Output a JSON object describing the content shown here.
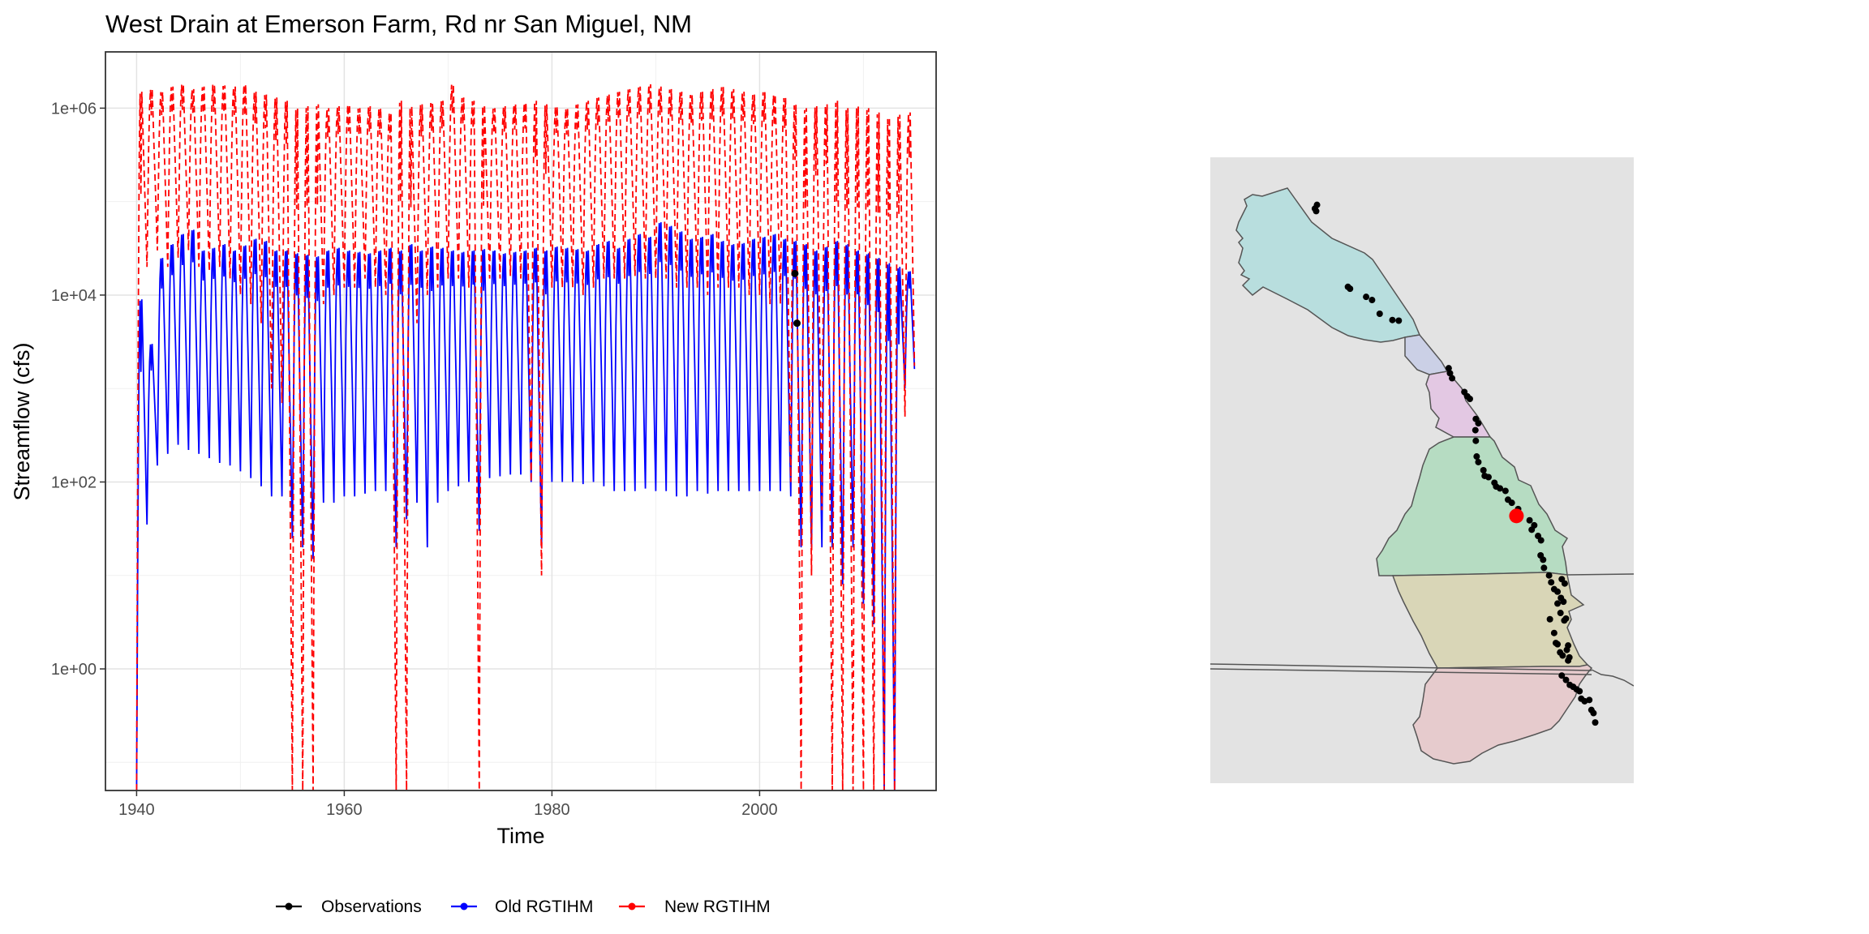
{
  "chart_data": {
    "type": "line",
    "title": "West Drain at Emerson Farm, Rd nr San Miguel, NM",
    "xlabel": "Time",
    "ylabel": "Streamflow (cfs)",
    "y_scale": "log10",
    "xlim": [
      1937,
      2017
    ],
    "ylim": [
      0.05,
      4000000
    ],
    "x_ticks": [
      1940,
      1960,
      1980,
      2000
    ],
    "x_tick_labels": [
      "1940",
      "1960",
      "1980",
      "2000"
    ],
    "y_ticks": [
      1,
      100,
      10000,
      1000000
    ],
    "y_tick_labels": [
      "1e+00",
      "1e+02",
      "1e+04",
      "1e+06"
    ],
    "grid": true,
    "legend_position": "bottom",
    "series": [
      {
        "name": "Observations",
        "color": "#000000",
        "style": "points",
        "points": [
          [
            2003.4,
            17000
          ],
          [
            2003.6,
            5000
          ]
        ]
      },
      {
        "name": "Old RGTIHM",
        "color": "#0000ff",
        "style": "solid",
        "start_year": 1940,
        "end_year": 2015,
        "annual_peak": [
          9000,
          3000,
          25000,
          35000,
          45000,
          50000,
          30000,
          32000,
          35000,
          30000,
          34000,
          40000,
          38000,
          30000,
          30000,
          28000,
          27000,
          26000,
          30000,
          32000,
          30000,
          29000,
          28000,
          30000,
          32000,
          30000,
          35000,
          30000,
          33000,
          32000,
          30000,
          29000,
          30000,
          31000,
          30000,
          28000,
          29000,
          30000,
          32000,
          30000,
          33000,
          32000,
          31000,
          30000,
          35000,
          38000,
          32000,
          40000,
          45000,
          42000,
          60000,
          55000,
          48000,
          40000,
          42000,
          45000,
          38000,
          35000,
          36000,
          40000,
          42000,
          45000,
          40000,
          38000,
          35000,
          30000,
          33000,
          38000,
          35000,
          30000,
          28000,
          25000,
          22000,
          20000,
          18000
        ],
        "annual_low": [
          0.05,
          35,
          150,
          200,
          250,
          220,
          200,
          180,
          160,
          150,
          130,
          110,
          90,
          70,
          70,
          25,
          20,
          15,
          60,
          60,
          70,
          70,
          75,
          80,
          80,
          20,
          40,
          60,
          20,
          60,
          80,
          90,
          100,
          30,
          110,
          115,
          120,
          120,
          100,
          20,
          100,
          100,
          100,
          95,
          100,
          90,
          80,
          80,
          80,
          85,
          80,
          80,
          70,
          70,
          80,
          75,
          80,
          80,
          80,
          80,
          80,
          80,
          80,
          70,
          20,
          20,
          20,
          20,
          8,
          20,
          5,
          3,
          0.05,
          0.05,
          1000
        ]
      },
      {
        "name": "New RGTIHM",
        "color": "#ff0000",
        "style": "dashed",
        "start_year": 1940,
        "end_year": 2015,
        "annual_peak": [
          1500000,
          1600000,
          1500000,
          1700000,
          1800000,
          1600000,
          1700000,
          1800000,
          1750000,
          1700000,
          1800000,
          1500000,
          1400000,
          1300000,
          1200000,
          1000000,
          1050000,
          1100000,
          1000000,
          1050000,
          1100000,
          1000000,
          1050000,
          1000000,
          900000,
          1200000,
          1050000,
          1100000,
          1150000,
          1200000,
          1800000,
          1300000,
          1200000,
          1100000,
          1000000,
          1050000,
          1100000,
          1150000,
          1200000,
          1100000,
          1050000,
          1000000,
          1100000,
          1200000,
          1300000,
          1400000,
          1500000,
          1600000,
          1700000,
          1800000,
          1700000,
          1600000,
          1500000,
          1400000,
          1500000,
          1600000,
          1700000,
          1600000,
          1500000,
          1400000,
          1500000,
          1400000,
          1300000,
          1100000,
          1000000,
          1050000,
          1100000,
          1200000,
          1000000,
          1050000,
          1000000,
          900000,
          800000,
          850000,
          900000
        ],
        "annual_low": [
          0.05,
          20000,
          30000,
          20000,
          25000,
          30000,
          20000,
          18000,
          20000,
          15000,
          10000,
          8000,
          5000,
          1000,
          700,
          0.05,
          0.05,
          0.05,
          8000,
          10000,
          12000,
          12000,
          15000,
          12000,
          10000,
          0.05,
          0.05,
          5000,
          10000,
          12000,
          15000,
          15000,
          12000,
          0.05,
          15000,
          15000,
          16000,
          15000,
          100,
          10,
          12000,
          12000,
          12000,
          10000,
          12000,
          15000,
          15000,
          15000,
          16000,
          15000,
          15000,
          15000,
          12000,
          12000,
          12000,
          10000,
          12000,
          12000,
          12000,
          10000,
          10000,
          8000,
          8000,
          100,
          0.05,
          10,
          50,
          0.05,
          0.05,
          0.05,
          0.05,
          0.05,
          0.05,
          0.05,
          500
        ]
      }
    ]
  },
  "legend": {
    "items": [
      {
        "label": "Observations",
        "color": "#000000"
      },
      {
        "label": "Old RGTIHM",
        "color": "#0000ff"
      },
      {
        "label": "New RGTIHM",
        "color": "#ff0000"
      }
    ]
  },
  "map": {
    "background_color": "#e3e3e3",
    "stations": [
      [
        0.247,
        0.082
      ],
      [
        0.252,
        0.076
      ],
      [
        0.25,
        0.086
      ],
      [
        0.325,
        0.207
      ],
      [
        0.33,
        0.21
      ],
      [
        0.368,
        0.223
      ],
      [
        0.382,
        0.228
      ],
      [
        0.4,
        0.25
      ],
      [
        0.43,
        0.26
      ],
      [
        0.445,
        0.261
      ],
      [
        0.563,
        0.337
      ],
      [
        0.566,
        0.345
      ],
      [
        0.571,
        0.353
      ],
      [
        0.6,
        0.375
      ],
      [
        0.607,
        0.382
      ],
      [
        0.613,
        0.386
      ],
      [
        0.627,
        0.418
      ],
      [
        0.633,
        0.425
      ],
      [
        0.626,
        0.436
      ],
      [
        0.627,
        0.453
      ],
      [
        0.629,
        0.478
      ],
      [
        0.633,
        0.487
      ],
      [
        0.645,
        0.5
      ],
      [
        0.648,
        0.509
      ],
      [
        0.657,
        0.511
      ],
      [
        0.671,
        0.52
      ],
      [
        0.675,
        0.526
      ],
      [
        0.684,
        0.529
      ],
      [
        0.697,
        0.533
      ],
      [
        0.703,
        0.547
      ],
      [
        0.712,
        0.552
      ],
      [
        0.727,
        0.562
      ],
      [
        0.754,
        0.58
      ],
      [
        0.765,
        0.588
      ],
      [
        0.759,
        0.595
      ],
      [
        0.774,
        0.605
      ],
      [
        0.781,
        0.612
      ],
      [
        0.78,
        0.636
      ],
      [
        0.786,
        0.643
      ],
      [
        0.788,
        0.656
      ],
      [
        0.8,
        0.668
      ],
      [
        0.805,
        0.679
      ],
      [
        0.812,
        0.69
      ],
      [
        0.82,
        0.694
      ],
      [
        0.83,
        0.674
      ],
      [
        0.837,
        0.681
      ],
      [
        0.828,
        0.704
      ],
      [
        0.834,
        0.71
      ],
      [
        0.82,
        0.713
      ],
      [
        0.827,
        0.728
      ],
      [
        0.836,
        0.74
      ],
      [
        0.84,
        0.737
      ],
      [
        0.802,
        0.738
      ],
      [
        0.812,
        0.76
      ],
      [
        0.816,
        0.776
      ],
      [
        0.82,
        0.778
      ],
      [
        0.826,
        0.791
      ],
      [
        0.832,
        0.796
      ],
      [
        0.842,
        0.787
      ],
      [
        0.845,
        0.78
      ],
      [
        0.848,
        0.799
      ],
      [
        0.845,
        0.804
      ],
      [
        0.83,
        0.828
      ],
      [
        0.84,
        0.835
      ],
      [
        0.849,
        0.843
      ],
      [
        0.857,
        0.846
      ],
      [
        0.865,
        0.85
      ],
      [
        0.872,
        0.853
      ],
      [
        0.876,
        0.865
      ],
      [
        0.884,
        0.869
      ],
      [
        0.895,
        0.867
      ],
      [
        0.9,
        0.883
      ],
      [
        0.905,
        0.888
      ],
      [
        0.909,
        0.903
      ]
    ],
    "highlight_station": [
      0.723,
      0.573
    ],
    "highlight_color": "#ff0000"
  }
}
